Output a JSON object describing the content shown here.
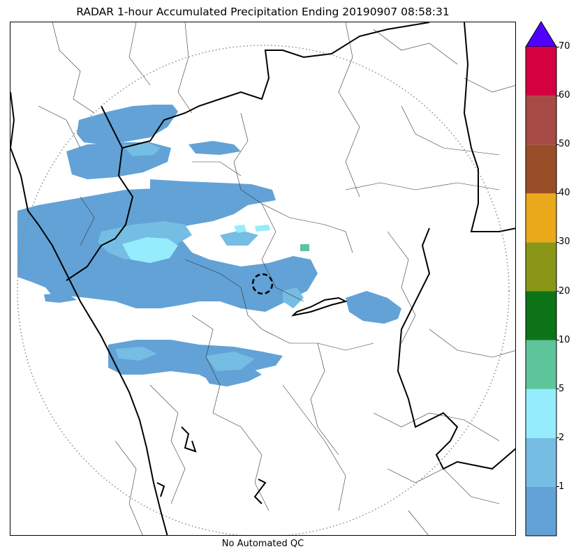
{
  "title": "RADAR 1-hour Accumulated Precipitation Ending 20190907 08:58:31",
  "footer": "No Automated QC",
  "colorbar": {
    "levels": [
      {
        "color": "#62a2d6"
      },
      {
        "label": "1",
        "color": "#75bde3"
      },
      {
        "label": "2",
        "color": "#94ecfc"
      },
      {
        "label": "5",
        "color": "#5dc49b"
      },
      {
        "label": "10",
        "color": "#0e7418"
      },
      {
        "label": "20",
        "color": "#8a9716"
      },
      {
        "label": "30",
        "color": "#e9a91a"
      },
      {
        "label": "40",
        "color": "#994e28"
      },
      {
        "label": "50",
        "color": "#a84a46"
      },
      {
        "label": "60",
        "color": "#d4003f"
      },
      {
        "label": "70"
      }
    ],
    "overflow_color": "#5000ff"
  },
  "map": {
    "range_ring": "dotted-gray",
    "radar_site_marker": "dashed-circle",
    "precip_colors": {
      "light": "#62a2d6",
      "moderate": "#75bde3",
      "heavy": "#94ecfc",
      "cells": "#5dc49b"
    }
  }
}
